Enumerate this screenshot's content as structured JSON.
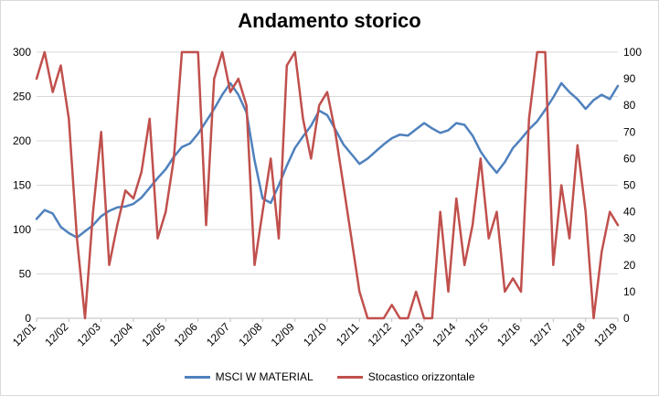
{
  "chart_data": {
    "type": "line",
    "title": "Andamento storico",
    "x_tick_labels": [
      "12/01",
      "12/02",
      "12/03",
      "12/04",
      "12/05",
      "12/06",
      "12/07",
      "12/08",
      "12/09",
      "12/10",
      "12/11",
      "12/12",
      "12/13",
      "12/14",
      "12/15",
      "12/16",
      "12/17",
      "12/18",
      "12/19"
    ],
    "y_left": {
      "min": 0,
      "max": 300,
      "ticks": [
        "0",
        "50",
        "100",
        "150",
        "200",
        "250",
        "300"
      ]
    },
    "y_right": {
      "min": 0,
      "max": 100,
      "ticks": [
        "0",
        "10",
        "20",
        "30",
        "40",
        "50",
        "60",
        "70",
        "80",
        "90",
        "100"
      ]
    },
    "gridlines": true,
    "legend_position": "bottom",
    "series": [
      {
        "name": "MSCI W MATERIAL",
        "axis": "left",
        "color": "#4f81bd",
        "x": [
          0,
          0.25,
          0.5,
          0.75,
          1,
          1.25,
          1.5,
          1.75,
          2,
          2.25,
          2.5,
          2.75,
          3,
          3.25,
          3.5,
          3.75,
          4,
          4.25,
          4.5,
          4.75,
          5,
          5.25,
          5.5,
          5.75,
          6,
          6.25,
          6.5,
          6.75,
          7,
          7.25,
          7.5,
          7.75,
          8,
          8.25,
          8.5,
          8.75,
          9,
          9.25,
          9.5,
          9.75,
          10,
          10.25,
          10.5,
          10.75,
          11,
          11.25,
          11.5,
          11.75,
          12,
          12.25,
          12.5,
          12.75,
          13,
          13.25,
          13.5,
          13.75,
          14,
          14.25,
          14.5,
          14.75,
          15,
          15.25,
          15.5,
          15.75,
          16,
          16.25,
          16.5,
          16.75,
          17,
          17.25,
          17.5,
          17.75,
          18
        ],
        "y": [
          112,
          122,
          118,
          103,
          96,
          91,
          98,
          105,
          115,
          121,
          125,
          126,
          129,
          136,
          147,
          158,
          168,
          182,
          193,
          197,
          208,
          222,
          236,
          252,
          265,
          252,
          232,
          178,
          135,
          130,
          150,
          172,
          192,
          205,
          217,
          234,
          229,
          213,
          196,
          185,
          174,
          180,
          188,
          196,
          203,
          207,
          206,
          213,
          220,
          214,
          209,
          212,
          220,
          218,
          206,
          188,
          175,
          164,
          176,
          192,
          202,
          213,
          222,
          235,
          249,
          265,
          255,
          247,
          236,
          246,
          252,
          247,
          262
        ]
      },
      {
        "name": "Stocastico orizzontale",
        "axis": "right",
        "color": "#c0504d",
        "x": [
          0,
          0.25,
          0.5,
          0.75,
          1,
          1.25,
          1.5,
          1.75,
          2,
          2.25,
          2.5,
          2.75,
          3,
          3.25,
          3.5,
          3.75,
          4,
          4.25,
          4.5,
          4.75,
          5,
          5.25,
          5.5,
          5.75,
          6,
          6.25,
          6.5,
          6.75,
          7,
          7.25,
          7.5,
          7.75,
          8,
          8.25,
          8.5,
          8.75,
          9,
          9.25,
          9.5,
          9.75,
          10,
          10.25,
          10.5,
          10.75,
          11,
          11.25,
          11.5,
          11.75,
          12,
          12.25,
          12.5,
          12.75,
          13,
          13.25,
          13.5,
          13.75,
          14,
          14.25,
          14.5,
          14.75,
          15,
          15.25,
          15.5,
          15.75,
          16,
          16.25,
          16.5,
          16.75,
          17,
          17.25,
          17.5,
          17.75,
          18
        ],
        "y": [
          90,
          100,
          85,
          95,
          75,
          30,
          0,
          40,
          70,
          20,
          35,
          48,
          45,
          55,
          75,
          30,
          40,
          60,
          100,
          100,
          100,
          35,
          90,
          100,
          85,
          90,
          80,
          20,
          40,
          60,
          30,
          95,
          100,
          75,
          60,
          80,
          85,
          70,
          50,
          30,
          10,
          0,
          0,
          0,
          5,
          0,
          0,
          10,
          0,
          0,
          40,
          10,
          45,
          20,
          35,
          60,
          30,
          40,
          10,
          15,
          10,
          75,
          100,
          100,
          20,
          50,
          30,
          65,
          40,
          0,
          25,
          40,
          35
        ]
      }
    ]
  }
}
